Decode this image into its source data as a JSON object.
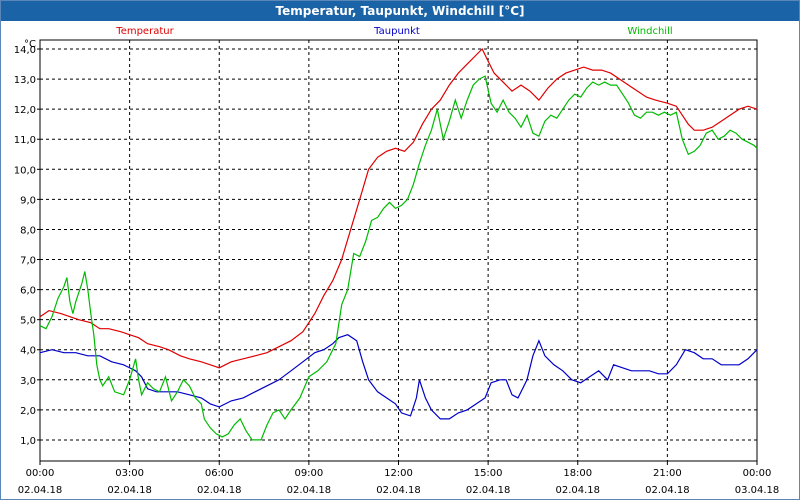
{
  "window": {
    "title": "Temperatur, Taupunkt, Windchill [°C]"
  },
  "chart_data": {
    "type": "line",
    "title": "Temperatur, Taupunkt, Windchill [°C]",
    "ylabel": "°C",
    "xlabel": "",
    "ylim": [
      0.3,
      14.3
    ],
    "xlim": [
      0,
      24
    ],
    "grid": true,
    "legend_position": "top",
    "y_ticks": [
      "1,0",
      "2,0",
      "3,0",
      "4,0",
      "5,0",
      "6,0",
      "7,0",
      "8,0",
      "9,0",
      "10,0",
      "11,0",
      "12,0",
      "13,0",
      "14,0"
    ],
    "y_tick_values": [
      1,
      2,
      3,
      4,
      5,
      6,
      7,
      8,
      9,
      10,
      11,
      12,
      13,
      14
    ],
    "x_ticks": [
      {
        "x": 0,
        "time": "00:00",
        "date": "02.04.18"
      },
      {
        "x": 3,
        "time": "03:00",
        "date": "02.04.18"
      },
      {
        "x": 6,
        "time": "06:00",
        "date": "02.04.18"
      },
      {
        "x": 9,
        "time": "09:00",
        "date": "02.04.18"
      },
      {
        "x": 12,
        "time": "12:00",
        "date": "02.04.18"
      },
      {
        "x": 15,
        "time": "15:00",
        "date": "02.04.18"
      },
      {
        "x": 18,
        "time": "18:00",
        "date": "02.04.18"
      },
      {
        "x": 21,
        "time": "21:00",
        "date": "02.04.18"
      },
      {
        "x": 24,
        "time": "00:00",
        "date": "03.04.18"
      }
    ],
    "series": [
      {
        "name": "Temperatur",
        "color": "#e00000",
        "points": [
          [
            0,
            5.1
          ],
          [
            0.3,
            5.3
          ],
          [
            0.7,
            5.2
          ],
          [
            1.0,
            5.1
          ],
          [
            1.3,
            5.0
          ],
          [
            1.7,
            4.9
          ],
          [
            2.0,
            4.7
          ],
          [
            2.3,
            4.7
          ],
          [
            2.7,
            4.6
          ],
          [
            3.0,
            4.5
          ],
          [
            3.3,
            4.4
          ],
          [
            3.6,
            4.2
          ],
          [
            4.0,
            4.1
          ],
          [
            4.3,
            4.0
          ],
          [
            4.7,
            3.8
          ],
          [
            5.0,
            3.7
          ],
          [
            5.4,
            3.6
          ],
          [
            5.7,
            3.5
          ],
          [
            6.0,
            3.4
          ],
          [
            6.4,
            3.6
          ],
          [
            6.8,
            3.7
          ],
          [
            7.2,
            3.8
          ],
          [
            7.6,
            3.9
          ],
          [
            8.0,
            4.1
          ],
          [
            8.4,
            4.3
          ],
          [
            8.8,
            4.6
          ],
          [
            9.2,
            5.2
          ],
          [
            9.5,
            5.8
          ],
          [
            9.8,
            6.3
          ],
          [
            10.1,
            7.0
          ],
          [
            10.4,
            8.0
          ],
          [
            10.7,
            9.0
          ],
          [
            11.0,
            10.0
          ],
          [
            11.3,
            10.4
          ],
          [
            11.6,
            10.6
          ],
          [
            11.9,
            10.7
          ],
          [
            12.2,
            10.6
          ],
          [
            12.5,
            10.9
          ],
          [
            12.8,
            11.5
          ],
          [
            13.1,
            12.0
          ],
          [
            13.4,
            12.3
          ],
          [
            13.7,
            12.8
          ],
          [
            14.0,
            13.2
          ],
          [
            14.3,
            13.5
          ],
          [
            14.6,
            13.8
          ],
          [
            14.8,
            14.0
          ],
          [
            15.0,
            13.6
          ],
          [
            15.2,
            13.2
          ],
          [
            15.5,
            12.9
          ],
          [
            15.8,
            12.6
          ],
          [
            16.1,
            12.8
          ],
          [
            16.4,
            12.6
          ],
          [
            16.7,
            12.3
          ],
          [
            17.0,
            12.7
          ],
          [
            17.3,
            13.0
          ],
          [
            17.6,
            13.2
          ],
          [
            17.9,
            13.3
          ],
          [
            18.2,
            13.4
          ],
          [
            18.5,
            13.3
          ],
          [
            18.8,
            13.3
          ],
          [
            19.1,
            13.2
          ],
          [
            19.4,
            13.0
          ],
          [
            19.7,
            12.8
          ],
          [
            20.0,
            12.6
          ],
          [
            20.3,
            12.4
          ],
          [
            20.6,
            12.3
          ],
          [
            21.0,
            12.2
          ],
          [
            21.3,
            12.1
          ],
          [
            21.5,
            11.8
          ],
          [
            21.7,
            11.5
          ],
          [
            21.9,
            11.3
          ],
          [
            22.2,
            11.3
          ],
          [
            22.5,
            11.4
          ],
          [
            22.8,
            11.6
          ],
          [
            23.1,
            11.8
          ],
          [
            23.4,
            12.0
          ],
          [
            23.7,
            12.1
          ],
          [
            24.0,
            12.0
          ]
        ]
      },
      {
        "name": "Taupunkt",
        "color": "#0000c8",
        "points": [
          [
            0,
            3.9
          ],
          [
            0.4,
            4.0
          ],
          [
            0.8,
            3.9
          ],
          [
            1.2,
            3.9
          ],
          [
            1.6,
            3.8
          ],
          [
            2.0,
            3.8
          ],
          [
            2.4,
            3.6
          ],
          [
            2.8,
            3.5
          ],
          [
            3.2,
            3.3
          ],
          [
            3.4,
            3.1
          ],
          [
            3.6,
            2.7
          ],
          [
            3.9,
            2.6
          ],
          [
            4.2,
            2.6
          ],
          [
            4.6,
            2.6
          ],
          [
            5.0,
            2.5
          ],
          [
            5.4,
            2.4
          ],
          [
            5.7,
            2.2
          ],
          [
            6.0,
            2.1
          ],
          [
            6.4,
            2.3
          ],
          [
            6.8,
            2.4
          ],
          [
            7.2,
            2.6
          ],
          [
            7.6,
            2.8
          ],
          [
            8.0,
            3.0
          ],
          [
            8.4,
            3.3
          ],
          [
            8.8,
            3.6
          ],
          [
            9.2,
            3.9
          ],
          [
            9.5,
            4.0
          ],
          [
            9.8,
            4.2
          ],
          [
            10.0,
            4.4
          ],
          [
            10.3,
            4.5
          ],
          [
            10.6,
            4.3
          ],
          [
            10.8,
            3.6
          ],
          [
            11.0,
            3.0
          ],
          [
            11.3,
            2.6
          ],
          [
            11.6,
            2.4
          ],
          [
            11.9,
            2.2
          ],
          [
            12.1,
            1.9
          ],
          [
            12.4,
            1.8
          ],
          [
            12.6,
            2.4
          ],
          [
            12.7,
            3.0
          ],
          [
            12.9,
            2.4
          ],
          [
            13.1,
            2.0
          ],
          [
            13.4,
            1.7
          ],
          [
            13.7,
            1.7
          ],
          [
            14.0,
            1.9
          ],
          [
            14.3,
            2.0
          ],
          [
            14.6,
            2.2
          ],
          [
            14.9,
            2.4
          ],
          [
            15.1,
            2.9
          ],
          [
            15.4,
            3.0
          ],
          [
            15.6,
            3.0
          ],
          [
            15.8,
            2.5
          ],
          [
            16.0,
            2.4
          ],
          [
            16.3,
            3.0
          ],
          [
            16.5,
            3.8
          ],
          [
            16.7,
            4.3
          ],
          [
            16.9,
            3.8
          ],
          [
            17.2,
            3.5
          ],
          [
            17.5,
            3.3
          ],
          [
            17.8,
            3.0
          ],
          [
            18.1,
            2.9
          ],
          [
            18.4,
            3.1
          ],
          [
            18.7,
            3.3
          ],
          [
            19.0,
            3.0
          ],
          [
            19.2,
            3.5
          ],
          [
            19.5,
            3.4
          ],
          [
            19.8,
            3.3
          ],
          [
            20.1,
            3.3
          ],
          [
            20.4,
            3.3
          ],
          [
            20.7,
            3.2
          ],
          [
            21.0,
            3.2
          ],
          [
            21.3,
            3.5
          ],
          [
            21.6,
            4.0
          ],
          [
            21.9,
            3.9
          ],
          [
            22.2,
            3.7
          ],
          [
            22.5,
            3.7
          ],
          [
            22.8,
            3.5
          ],
          [
            23.1,
            3.5
          ],
          [
            23.4,
            3.5
          ],
          [
            23.7,
            3.7
          ],
          [
            24.0,
            4.0
          ]
        ]
      },
      {
        "name": "Windchill",
        "color": "#00bb00",
        "points": [
          [
            0,
            4.8
          ],
          [
            0.2,
            4.7
          ],
          [
            0.4,
            5.1
          ],
          [
            0.6,
            5.7
          ],
          [
            0.8,
            6.1
          ],
          [
            0.9,
            6.4
          ],
          [
            1.0,
            5.6
          ],
          [
            1.1,
            5.2
          ],
          [
            1.2,
            5.6
          ],
          [
            1.4,
            6.2
          ],
          [
            1.5,
            6.6
          ],
          [
            1.6,
            6.0
          ],
          [
            1.7,
            5.2
          ],
          [
            1.8,
            4.5
          ],
          [
            1.9,
            3.5
          ],
          [
            2.0,
            3.0
          ],
          [
            2.1,
            2.8
          ],
          [
            2.3,
            3.1
          ],
          [
            2.5,
            2.6
          ],
          [
            2.8,
            2.5
          ],
          [
            3.0,
            3.0
          ],
          [
            3.2,
            3.7
          ],
          [
            3.3,
            3.0
          ],
          [
            3.4,
            2.5
          ],
          [
            3.6,
            2.9
          ],
          [
            3.8,
            2.7
          ],
          [
            4.0,
            2.6
          ],
          [
            4.2,
            3.1
          ],
          [
            4.4,
            2.3
          ],
          [
            4.6,
            2.6
          ],
          [
            4.8,
            3.0
          ],
          [
            5.0,
            2.8
          ],
          [
            5.2,
            2.4
          ],
          [
            5.4,
            2.2
          ],
          [
            5.5,
            1.7
          ],
          [
            5.7,
            1.4
          ],
          [
            5.9,
            1.2
          ],
          [
            6.1,
            1.1
          ],
          [
            6.3,
            1.2
          ],
          [
            6.5,
            1.5
          ],
          [
            6.7,
            1.7
          ],
          [
            6.9,
            1.3
          ],
          [
            7.1,
            1.0
          ],
          [
            7.4,
            1.0
          ],
          [
            7.6,
            1.5
          ],
          [
            7.8,
            1.9
          ],
          [
            8.0,
            2.0
          ],
          [
            8.2,
            1.7
          ],
          [
            8.4,
            2.0
          ],
          [
            8.7,
            2.4
          ],
          [
            9.0,
            3.1
          ],
          [
            9.3,
            3.3
          ],
          [
            9.6,
            3.6
          ],
          [
            9.9,
            4.2
          ],
          [
            10.1,
            5.5
          ],
          [
            10.3,
            6.0
          ],
          [
            10.5,
            7.2
          ],
          [
            10.7,
            7.1
          ],
          [
            10.9,
            7.6
          ],
          [
            11.1,
            8.3
          ],
          [
            11.3,
            8.4
          ],
          [
            11.5,
            8.7
          ],
          [
            11.7,
            8.9
          ],
          [
            11.9,
            8.7
          ],
          [
            12.1,
            8.8
          ],
          [
            12.3,
            9.0
          ],
          [
            12.5,
            9.5
          ],
          [
            12.7,
            10.2
          ],
          [
            12.9,
            10.8
          ],
          [
            13.1,
            11.3
          ],
          [
            13.3,
            12.0
          ],
          [
            13.5,
            11.0
          ],
          [
            13.7,
            11.6
          ],
          [
            13.9,
            12.3
          ],
          [
            14.1,
            11.7
          ],
          [
            14.3,
            12.3
          ],
          [
            14.5,
            12.8
          ],
          [
            14.7,
            13.0
          ],
          [
            14.9,
            13.1
          ],
          [
            15.1,
            12.2
          ],
          [
            15.3,
            11.9
          ],
          [
            15.5,
            12.3
          ],
          [
            15.7,
            11.9
          ],
          [
            15.9,
            11.7
          ],
          [
            16.1,
            11.4
          ],
          [
            16.3,
            11.8
          ],
          [
            16.5,
            11.2
          ],
          [
            16.7,
            11.1
          ],
          [
            16.9,
            11.6
          ],
          [
            17.1,
            11.8
          ],
          [
            17.3,
            11.7
          ],
          [
            17.5,
            12.0
          ],
          [
            17.7,
            12.3
          ],
          [
            17.9,
            12.5
          ],
          [
            18.1,
            12.4
          ],
          [
            18.3,
            12.7
          ],
          [
            18.5,
            12.9
          ],
          [
            18.7,
            12.8
          ],
          [
            18.9,
            12.9
          ],
          [
            19.1,
            12.8
          ],
          [
            19.3,
            12.8
          ],
          [
            19.5,
            12.5
          ],
          [
            19.7,
            12.2
          ],
          [
            19.9,
            11.8
          ],
          [
            20.1,
            11.7
          ],
          [
            20.3,
            11.9
          ],
          [
            20.5,
            11.9
          ],
          [
            20.7,
            11.8
          ],
          [
            20.9,
            11.9
          ],
          [
            21.1,
            11.8
          ],
          [
            21.3,
            11.9
          ],
          [
            21.5,
            11.0
          ],
          [
            21.7,
            10.5
          ],
          [
            21.9,
            10.6
          ],
          [
            22.1,
            10.8
          ],
          [
            22.3,
            11.2
          ],
          [
            22.5,
            11.3
          ],
          [
            22.7,
            11.0
          ],
          [
            22.9,
            11.1
          ],
          [
            23.1,
            11.3
          ],
          [
            23.3,
            11.2
          ],
          [
            23.5,
            11.0
          ],
          [
            23.7,
            10.9
          ],
          [
            23.9,
            10.8
          ],
          [
            24.0,
            10.7
          ]
        ]
      }
    ]
  }
}
